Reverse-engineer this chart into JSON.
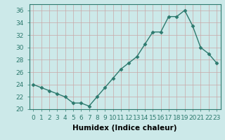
{
  "x": [
    0,
    1,
    2,
    3,
    4,
    5,
    6,
    7,
    8,
    9,
    10,
    11,
    12,
    13,
    14,
    15,
    16,
    17,
    18,
    19,
    20,
    21,
    22,
    23
  ],
  "y": [
    24.0,
    23.5,
    23.0,
    22.5,
    22.0,
    21.0,
    21.0,
    20.5,
    22.0,
    23.5,
    25.0,
    26.5,
    27.5,
    28.5,
    30.5,
    32.5,
    32.5,
    35.0,
    35.0,
    36.0,
    33.5,
    30.0,
    29.0,
    27.5
  ],
  "line_color": "#2d7a6e",
  "marker": "D",
  "marker_size": 2.5,
  "line_width": 1.0,
  "xlabel": "Humidex (Indice chaleur)",
  "xlabel_fontsize": 7.5,
  "xlim": [
    -0.5,
    23.5
  ],
  "ylim": [
    20,
    37
  ],
  "yticks": [
    20,
    22,
    24,
    26,
    28,
    30,
    32,
    34,
    36
  ],
  "xticks": [
    0,
    1,
    2,
    3,
    4,
    5,
    6,
    7,
    8,
    9,
    10,
    11,
    12,
    13,
    14,
    15,
    16,
    17,
    18,
    19,
    20,
    21,
    22,
    23
  ],
  "background_color": "#cce9e9",
  "grid_color": "#b0d0d0",
  "tick_fontsize": 6.5
}
